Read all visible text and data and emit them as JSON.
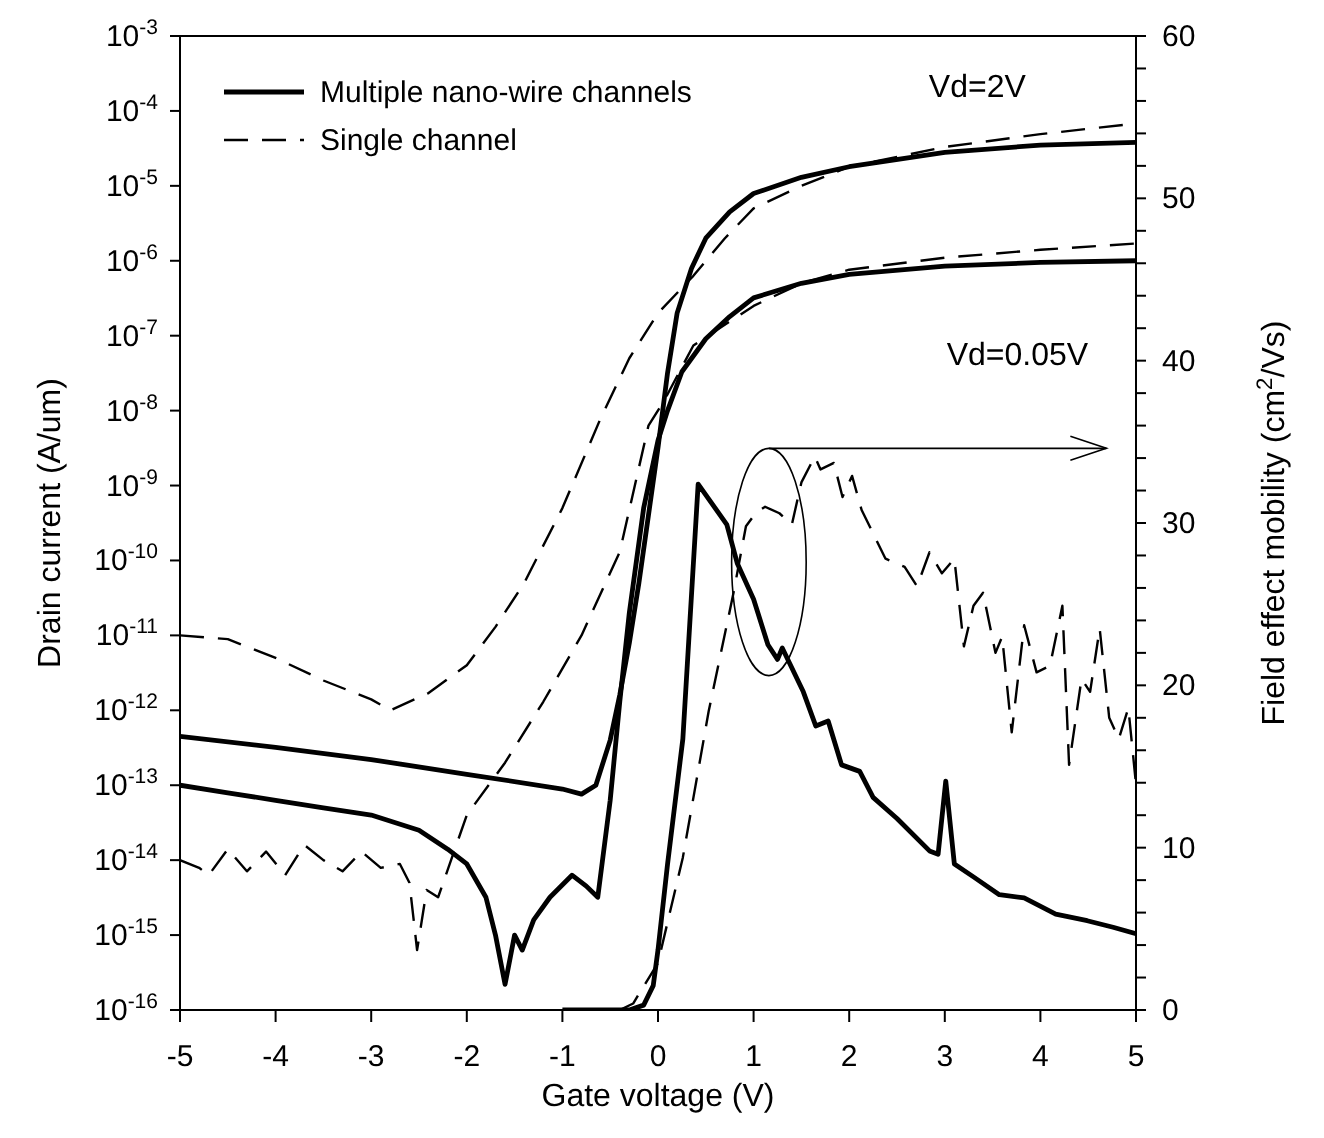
{
  "chart_data": {
    "type": "line",
    "xlabel": "Gate voltage (V)",
    "ylabel": "Drain current (A/um)",
    "y2label": "Field effect mobility (cm$^{2}$/Vs)",
    "annotations": [
      "Vd=2V",
      "Vd=0.05V"
    ],
    "xlim": [
      -5,
      5
    ],
    "xticks": [
      -5,
      -4,
      -3,
      -2,
      -1,
      0,
      1,
      2,
      3,
      4,
      5
    ],
    "ylim": [
      1e-16,
      0.001
    ],
    "log": "y",
    "yticks": [
      {
        "value": 1e-16,
        "label": "10$^{-16}$"
      },
      {
        "value": 1e-15,
        "label": "10$^{-15}$"
      },
      {
        "value": 1e-14,
        "label": "10$^{-14}$"
      },
      {
        "value": 1e-13,
        "label": "10$^{-13}$"
      },
      {
        "value": 1e-12,
        "label": "10$^{-12}$"
      },
      {
        "value": 1e-11,
        "label": "10$^{-11}$"
      },
      {
        "value": 1e-10,
        "label": "10$^{-10}$"
      },
      {
        "value": 1e-09,
        "label": "10$^{-9}$"
      },
      {
        "value": 1e-08,
        "label": "10$^{-8}$"
      },
      {
        "value": 1e-07,
        "label": "10$^{-7}$"
      },
      {
        "value": 1e-06,
        "label": "10$^{-6}$"
      },
      {
        "value": 1e-05,
        "label": "10$^{-5}$"
      },
      {
        "value": 0.0001,
        "label": "10$^{-4}$"
      },
      {
        "value": 0.001,
        "label": "10$^{-3}$"
      }
    ],
    "y2lim": [
      0,
      60
    ],
    "y2ticks": [
      0,
      {
        "value": 2,
        "label": null
      },
      {
        "value": 4,
        "label": null
      },
      {
        "value": 6,
        "label": null
      },
      {
        "value": 8,
        "label": null
      },
      10,
      {
        "value": 12,
        "label": null
      },
      {
        "value": 14,
        "label": null
      },
      {
        "value": 16,
        "label": null
      },
      {
        "value": 18,
        "label": null
      },
      20,
      {
        "value": 22,
        "label": null
      },
      {
        "value": 24,
        "label": null
      },
      {
        "value": 26,
        "label": null
      },
      {
        "value": 28,
        "label": null
      },
      30,
      {
        "value": 32,
        "label": null
      },
      {
        "value": 34,
        "label": null
      },
      {
        "value": 36,
        "label": null
      },
      {
        "value": 38,
        "label": null
      },
      40,
      {
        "value": 42,
        "label": null
      },
      {
        "value": 44,
        "label": null
      },
      {
        "value": 46,
        "label": null
      },
      {
        "value": 48,
        "label": null
      },
      50,
      {
        "value": 52,
        "label": null
      },
      {
        "value": 54,
        "label": null
      },
      {
        "value": 56,
        "label": null
      },
      {
        "value": 58,
        "label": null
      },
      60
    ],
    "legend": "top left",
    "marker": "none",
    "series": [
      {
        "name": "Multiple nano-wire channels",
        "color": "#000000",
        "line_style": "solid",
        "x": [
          -5,
          -4,
          -3,
          -2,
          -1,
          -0.8,
          -0.65,
          -0.5,
          -0.4,
          -0.3,
          -0.2,
          -0.1,
          0,
          0.1,
          0.2,
          0.35,
          0.5,
          0.75,
          1,
          1.5,
          2,
          3,
          4,
          5
        ],
        "values": [
          4.5e-13,
          3.2e-13,
          2.2e-13,
          1.4e-13,
          8.9e-14,
          7.6e-14,
          1e-13,
          4e-13,
          1.6e-12,
          7.9e-12,
          5e-11,
          4e-10,
          3.2e-09,
          3.2e-08,
          2e-07,
          7.9e-07,
          2e-06,
          4.5e-06,
          7.9e-06,
          1.3e-05,
          1.8e-05,
          2.8e-05,
          3.5e-05,
          3.8e-05
        ]
      },
      {
        "name": "Single channel",
        "color": "#000000",
        "line_style": "dashed",
        "x": [
          -5,
          -4.5,
          -4,
          -3.5,
          -3,
          -2.8,
          -2.4,
          -2,
          -1.7,
          -1.4,
          -1,
          -0.6,
          -0.3,
          0,
          0.37,
          0.7,
          1,
          1.5,
          2,
          3,
          4,
          5
        ],
        "values": [
          1e-11,
          8.9e-12,
          5e-12,
          2.5e-12,
          1.4e-12,
          1e-12,
          1.7e-12,
          4e-12,
          1.3e-11,
          5e-11,
          5e-10,
          7.9e-09,
          5e-08,
          2e-07,
          6.3e-07,
          2e-06,
          5e-06,
          1e-05,
          1.8e-05,
          3.3e-05,
          4.9e-05,
          6.8e-05
        ]
      },
      {
        "color": "#000000",
        "line_style": "solid",
        "x": [
          -5,
          -4.5,
          -4,
          -3.5,
          -3,
          -2.5,
          -2.2,
          -2,
          -1.8,
          -1.7,
          -1.6,
          -1.5,
          -1.42,
          -1.3,
          -1.13,
          -0.9,
          -0.75,
          -0.63,
          -0.5,
          -0.4,
          -0.3,
          -0.15,
          0,
          0.1,
          0.25,
          0.5,
          0.75,
          1,
          1.5,
          2,
          3,
          4,
          5
        ],
        "values": [
          1e-13,
          7.9e-14,
          6.3e-14,
          5e-14,
          4e-14,
          2.5e-14,
          1.4e-14,
          8.9e-15,
          3.2e-15,
          1e-15,
          2.2e-16,
          1e-15,
          6.3e-16,
          1.6e-15,
          3.2e-15,
          6.3e-15,
          4.5e-15,
          3.2e-15,
          6.3e-14,
          1.3e-12,
          2e-11,
          5e-10,
          4e-09,
          1e-08,
          3.3e-08,
          9.1e-08,
          1.8e-07,
          3.2e-07,
          5e-07,
          6.6e-07,
          8.5e-07,
          9.5e-07,
          1e-06
        ]
      },
      {
        "color": "#000000",
        "line_style": "dashed",
        "x": [
          -5,
          -4.8,
          -4.7,
          -4.5,
          -4.3,
          -4.1,
          -3.9,
          -3.7,
          -3.5,
          -3.3,
          -3.1,
          -2.9,
          -2.7,
          -2.6,
          -2.52,
          -2.42,
          -2.3,
          -2,
          -1.6,
          -1.2,
          -0.8,
          -0.4,
          -0.1,
          0.07,
          0.37,
          1,
          1.5,
          2,
          3,
          4,
          5
        ],
        "values": [
          1e-14,
          7.9e-15,
          6.3e-15,
          1.4e-14,
          7.1e-15,
          1.3e-14,
          6.3e-15,
          1.6e-14,
          1e-14,
          7.1e-15,
          1.3e-14,
          7.9e-15,
          8.9e-15,
          5e-15,
          6.3e-16,
          4e-15,
          3.2e-15,
          4e-14,
          2e-13,
          1.3e-12,
          1e-11,
          1.3e-10,
          6.3e-09,
          1.4e-08,
          7.4e-08,
          2.5e-07,
          5e-07,
          7.6e-07,
          1.1e-06,
          1.4e-06,
          1.7e-06
        ]
      },
      {
        "color": "#000000",
        "line_style": "solid",
        "axis": "y2",
        "x": [
          -1,
          -0.3,
          -0.15,
          -0.05,
          0,
          0.1,
          0.26,
          0.42,
          0.72,
          0.83,
          1,
          1.15,
          1.25,
          1.3,
          1.52,
          1.65,
          1.78,
          1.92,
          2.11,
          2.25,
          2.5,
          2.84,
          2.93,
          3.01,
          3.1,
          3.3,
          3.57,
          3.83,
          4.16,
          4.49,
          4.76,
          5
        ],
        "values": [
          0,
          0,
          0.3,
          1.5,
          3.7,
          9,
          16.7,
          32.4,
          29.9,
          27.5,
          25.3,
          22.5,
          21.6,
          22.3,
          19.6,
          17.5,
          17.8,
          15.1,
          14.7,
          13.1,
          11.8,
          9.8,
          9.6,
          14.1,
          9,
          8.2,
          7.1,
          6.9,
          5.9,
          5.5,
          5.1,
          4.7
        ]
      },
      {
        "color": "#000000",
        "line_style": "dashed",
        "axis": "y2",
        "x": [
          -0.4,
          -0.26,
          0,
          0.26,
          0.53,
          0.79,
          0.92,
          1.02,
          1.12,
          1.27,
          1.4,
          1.5,
          1.64,
          1.7,
          1.84,
          1.93,
          2.03,
          2.13,
          2.38,
          2.58,
          2.71,
          2.84,
          2.97,
          3.1,
          3.2,
          3.3,
          3.4,
          3.53,
          3.6,
          3.7,
          3.83,
          3.96,
          4.1,
          4.23,
          4.3,
          4.43,
          4.52,
          4.62,
          4.72,
          4.82,
          4.92,
          5
        ],
        "values": [
          0,
          0.4,
          2.9,
          9.4,
          18.4,
          25.7,
          29.8,
          30.6,
          31,
          30.6,
          29.9,
          32.5,
          34.1,
          33.3,
          33.7,
          31.6,
          32.9,
          30.8,
          27.8,
          27.3,
          26.1,
          28.2,
          26.9,
          27.8,
          22.4,
          24.9,
          25.7,
          22,
          23,
          17.1,
          23.7,
          20.8,
          21.2,
          24.9,
          15.1,
          20.4,
          19.6,
          23.5,
          18,
          16.7,
          18.6,
          13.9
        ]
      }
    ]
  }
}
